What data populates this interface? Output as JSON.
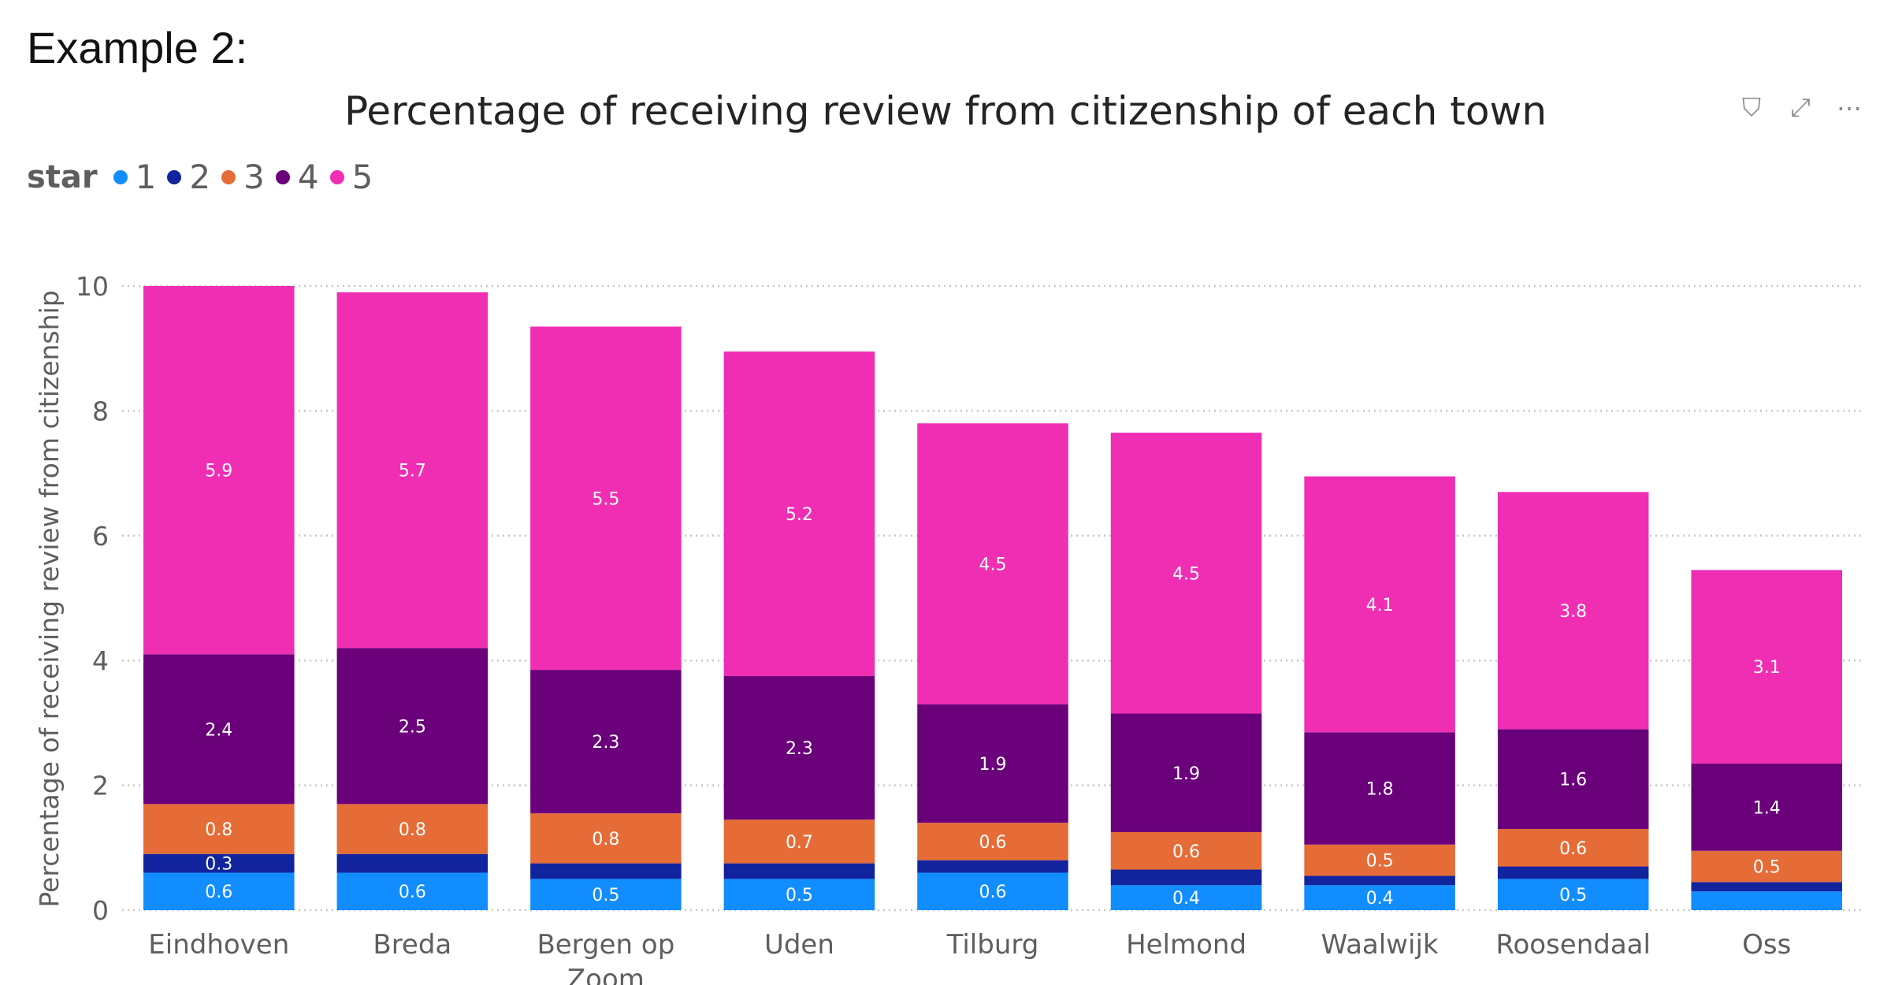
{
  "header": {
    "example_label": "Example 2:"
  },
  "toolbar": [
    {
      "name": "filter-icon",
      "glyph": "⛉"
    },
    {
      "name": "focus-mode-icon",
      "glyph": "⤢"
    },
    {
      "name": "more-options-icon",
      "glyph": "⋯"
    }
  ],
  "chart_data": {
    "type": "bar",
    "stacked": true,
    "title": "Percentage of receiving review from citizenship of each town",
    "xlabel": "",
    "ylabel": "Percentage of receiving review from citizenship",
    "ylim": [
      0,
      10
    ],
    "yticks": [
      0,
      2,
      4,
      6,
      8,
      10
    ],
    "grid": true,
    "legend_title": "star",
    "legend_position": "top-left",
    "categories": [
      "Eindhoven",
      "Breda",
      "Bergen op Zoom",
      "Uden",
      "Tilburg",
      "Helmond",
      "Waalwijk",
      "Roosendaal",
      "Oss"
    ],
    "series": [
      {
        "name": "1",
        "color": "#118DFF",
        "values": [
          0.6,
          0.6,
          0.5,
          0.5,
          0.6,
          0.4,
          0.4,
          0.5,
          0.3
        ],
        "labels": [
          "0.6",
          "0.6",
          "0.5",
          "0.5",
          "0.6",
          "0.4",
          "0.4",
          "0.5",
          ""
        ]
      },
      {
        "name": "2",
        "color": "#12239E",
        "values": [
          0.3,
          0.3,
          0.25,
          0.25,
          0.2,
          0.25,
          0.15,
          0.2,
          0.15
        ],
        "labels": [
          "0.3",
          "",
          "",
          "",
          "",
          "",
          "",
          "",
          ""
        ]
      },
      {
        "name": "3",
        "color": "#E66C37",
        "values": [
          0.8,
          0.8,
          0.8,
          0.7,
          0.6,
          0.6,
          0.5,
          0.6,
          0.5
        ],
        "labels": [
          "0.8",
          "0.8",
          "0.8",
          "0.7",
          "0.6",
          "0.6",
          "0.5",
          "0.6",
          "0.5"
        ]
      },
      {
        "name": "4",
        "color": "#6B007B",
        "values": [
          2.4,
          2.5,
          2.3,
          2.3,
          1.9,
          1.9,
          1.8,
          1.6,
          1.4
        ],
        "labels": [
          "2.4",
          "2.5",
          "2.3",
          "2.3",
          "1.9",
          "1.9",
          "1.8",
          "1.6",
          "1.4"
        ]
      },
      {
        "name": "5",
        "color": "#F02EB4",
        "values": [
          5.9,
          5.7,
          5.5,
          5.2,
          4.5,
          4.5,
          4.1,
          3.8,
          3.1
        ],
        "labels": [
          "5.9",
          "5.7",
          "5.5",
          "5.2",
          "4.5",
          "4.5",
          "4.1",
          "3.8",
          "3.1"
        ]
      }
    ]
  }
}
